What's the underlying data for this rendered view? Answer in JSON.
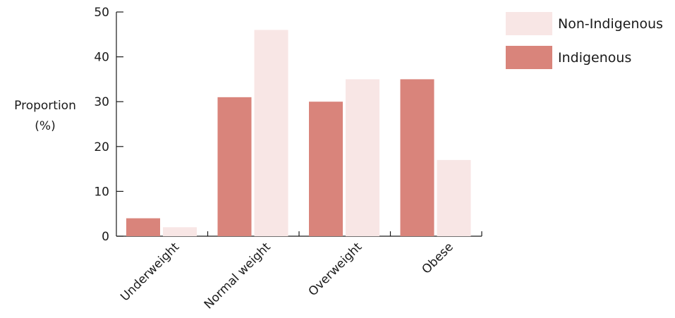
{
  "chart_data": {
    "type": "bar",
    "categories": [
      "Underweight",
      "Normal weight",
      "Overweight",
      "Obese"
    ],
    "series": [
      {
        "name": "Indigenous",
        "values": [
          4,
          31,
          30,
          35
        ],
        "color": "#d9847b"
      },
      {
        "name": "Non-Indigenous",
        "values": [
          2,
          46,
          35,
          17
        ],
        "color": "#f8e6e5"
      }
    ],
    "xlabel": "",
    "ylabel_line1": "Proportion",
    "ylabel_line2": "(%)",
    "ylim": [
      0,
      50
    ],
    "yticks": [
      0,
      10,
      20,
      30,
      40,
      50
    ],
    "legend_position": "top-right",
    "legend_order": [
      "Non-Indigenous",
      "Indigenous"
    ],
    "grid": false
  }
}
